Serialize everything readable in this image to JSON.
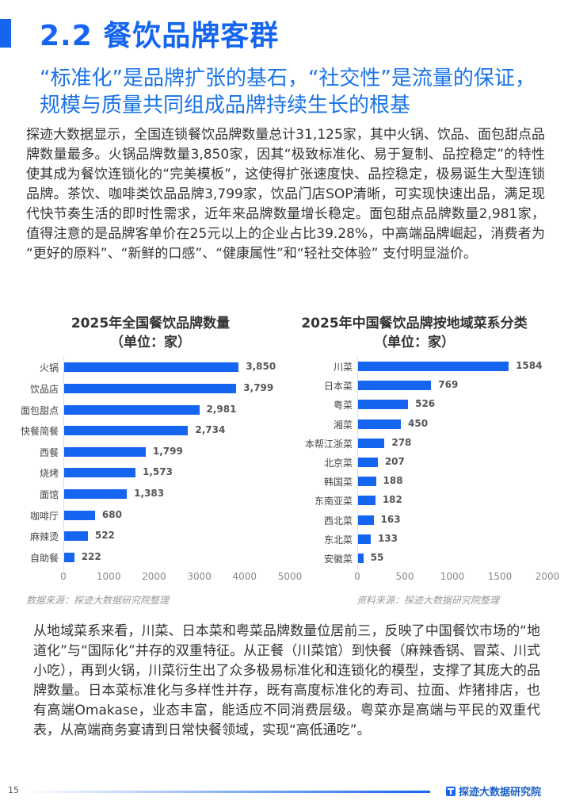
{
  "header": {
    "section_title": "2.2 餐饮品牌客群",
    "subtitle": "“标准化”是品牌扩张的基石，“社交性”是流量的保证，规模与质量共同组成品牌持续生长的根基",
    "accent_color": "#1565f0"
  },
  "body": {
    "paragraph_1": "探迹大数据显示，全国连锁餐饮品牌数量总计31,125家，其中火锅、饮品、面包甜点品牌数量最多。火锅品牌数量3,850家，因其“极致标准化、易于复制、品控稳定”的特性使其成为餐饮连锁化的“完美模板”，这使得扩张速度快、品控稳定，极易诞生大型连锁品牌。茶饮、咖啡类饮品品牌3,799家，饮品门店SOP清晰，可实现快速出品，满足现代快节奏生活的即时性需求，近年来品牌数量增长稳定。面包甜点品牌数量2,981家，值得注意的是品牌客单价在25元以上的企业占比39.28%，中高端品牌崛起，消费者为 “更好的原料”、“新鲜的口感”、“健康属性”和“轻社交体验” 支付明显溢价。",
    "paragraph_2": "从地域菜系来看，川菜、日本菜和粤菜品牌数量位居前三，反映了中国餐饮市场的“地道化”与“国际化”并存的双重特征。从正餐（川菜馆）到快餐（麻辣香锅、冒菜、川式小吃），再到火锅，川菜衍生出了众多极易标准化和连锁化的模型，支撑了其庞大的品牌数量。日本菜标准化与多样性并存，既有高度标准化的寿司、拉面、炸猪排店，也有高端Omakase，业态丰富，能适应不同消费层级。粤菜亦是高端与平民的双重代表，从高端商务宴请到日常快餐领域，实现“高低通吃”。"
  },
  "chart_data": [
    {
      "type": "bar",
      "orientation": "horizontal",
      "title": "2025年全国餐饮品牌数量",
      "subtitle": "（单位：家）",
      "categories": [
        "火锅",
        "饮品店",
        "面包甜点",
        "快餐简餐",
        "西餐",
        "烧烤",
        "面馆",
        "咖啡厅",
        "麻辣烫",
        "自助餐"
      ],
      "values": [
        3850,
        3799,
        2981,
        2734,
        1799,
        1573,
        1383,
        680,
        522,
        222
      ],
      "value_labels": [
        "3,850",
        "3,799",
        "2,981",
        "2,734",
        "1,799",
        "1,573",
        "1,383",
        "680",
        "522",
        "222"
      ],
      "xticks": [
        "0",
        "1000",
        "2000",
        "3000",
        "4000",
        "5000"
      ],
      "xlim": [
        0,
        5000
      ],
      "grid": false,
      "bar_color": "#1565f0",
      "source": "数据来源：探迹大数据研究院整理"
    },
    {
      "type": "bar",
      "orientation": "horizontal",
      "title": "2025年中国餐饮品牌按地域菜系分类",
      "subtitle": "（单位：家）",
      "categories": [
        "川菜",
        "日本菜",
        "粤菜",
        "湘菜",
        "本帮江浙菜",
        "北京菜",
        "韩国菜",
        "东南亚菜",
        "西北菜",
        "东北菜",
        "安徽菜"
      ],
      "values": [
        1584,
        769,
        526,
        450,
        278,
        207,
        188,
        182,
        163,
        133,
        55
      ],
      "value_labels": [
        "1584",
        "769",
        "526",
        "450",
        "278",
        "207",
        "188",
        "182",
        "163",
        "133",
        "55"
      ],
      "xticks": [
        "0",
        "500",
        "1000",
        "1500",
        "2000"
      ],
      "xlim": [
        0,
        2000
      ],
      "grid": false,
      "bar_color": "#1565f0",
      "source": "资料来源：探迹大数据研究院整理"
    }
  ],
  "footer": {
    "page_number": "15",
    "brand": "探迹大数据研究院",
    "brand_icon": "brand-logo-icon"
  }
}
